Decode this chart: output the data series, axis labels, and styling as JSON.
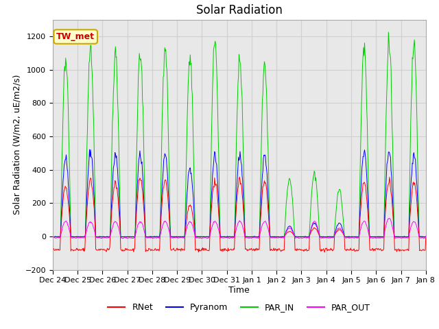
{
  "title": "Solar Radiation",
  "ylabel": "Solar Radiation (W/m2, uE/m2/s)",
  "xlabel": "Time",
  "ylim": [
    -200,
    1300
  ],
  "yticks": [
    -200,
    0,
    200,
    400,
    600,
    800,
    1000,
    1200
  ],
  "xtick_labels": [
    "Dec 24",
    "Dec 25",
    "Dec 26",
    "Dec 27",
    "Dec 28",
    "Dec 29",
    "Dec 30",
    "Dec 31",
    "Jan 1",
    "Jan 2",
    "Jan 3",
    "Jan 4",
    "Jan 5",
    "Jan 6",
    "Jan 7",
    "Jan 8"
  ],
  "colors": {
    "RNet": "#ff0000",
    "Pyranom": "#0000ff",
    "PAR_IN": "#00cc00",
    "PAR_OUT": "#ff00ff"
  },
  "annotation_text": "TW_met",
  "annotation_bg": "#ffffcc",
  "annotation_border": "#ccaa00",
  "grid_color": "#d0d0d0",
  "background_color": "#e8e8e8",
  "title_fontsize": 12,
  "axis_fontsize": 9,
  "tick_fontsize": 8,
  "n_days": 15,
  "rnet_peaks": [
    300,
    340,
    320,
    350,
    340,
    190,
    330,
    350,
    330,
    30,
    50,
    40,
    320,
    330,
    320
  ],
  "pyr_peaks": [
    470,
    510,
    490,
    490,
    490,
    410,
    490,
    490,
    490,
    60,
    80,
    80,
    510,
    500,
    490
  ],
  "par_in_peaks": [
    1060,
    1130,
    1090,
    1090,
    1110,
    1050,
    1170,
    1060,
    1030,
    350,
    380,
    280,
    1130,
    1160,
    1140
  ],
  "par_out_peaks": [
    90,
    90,
    90,
    90,
    90,
    90,
    90,
    90,
    90,
    50,
    90,
    50,
    90,
    110,
    90
  ],
  "rnet_night": -80,
  "pyr_night": -2,
  "par_in_night": -2,
  "par_out_night": -8
}
